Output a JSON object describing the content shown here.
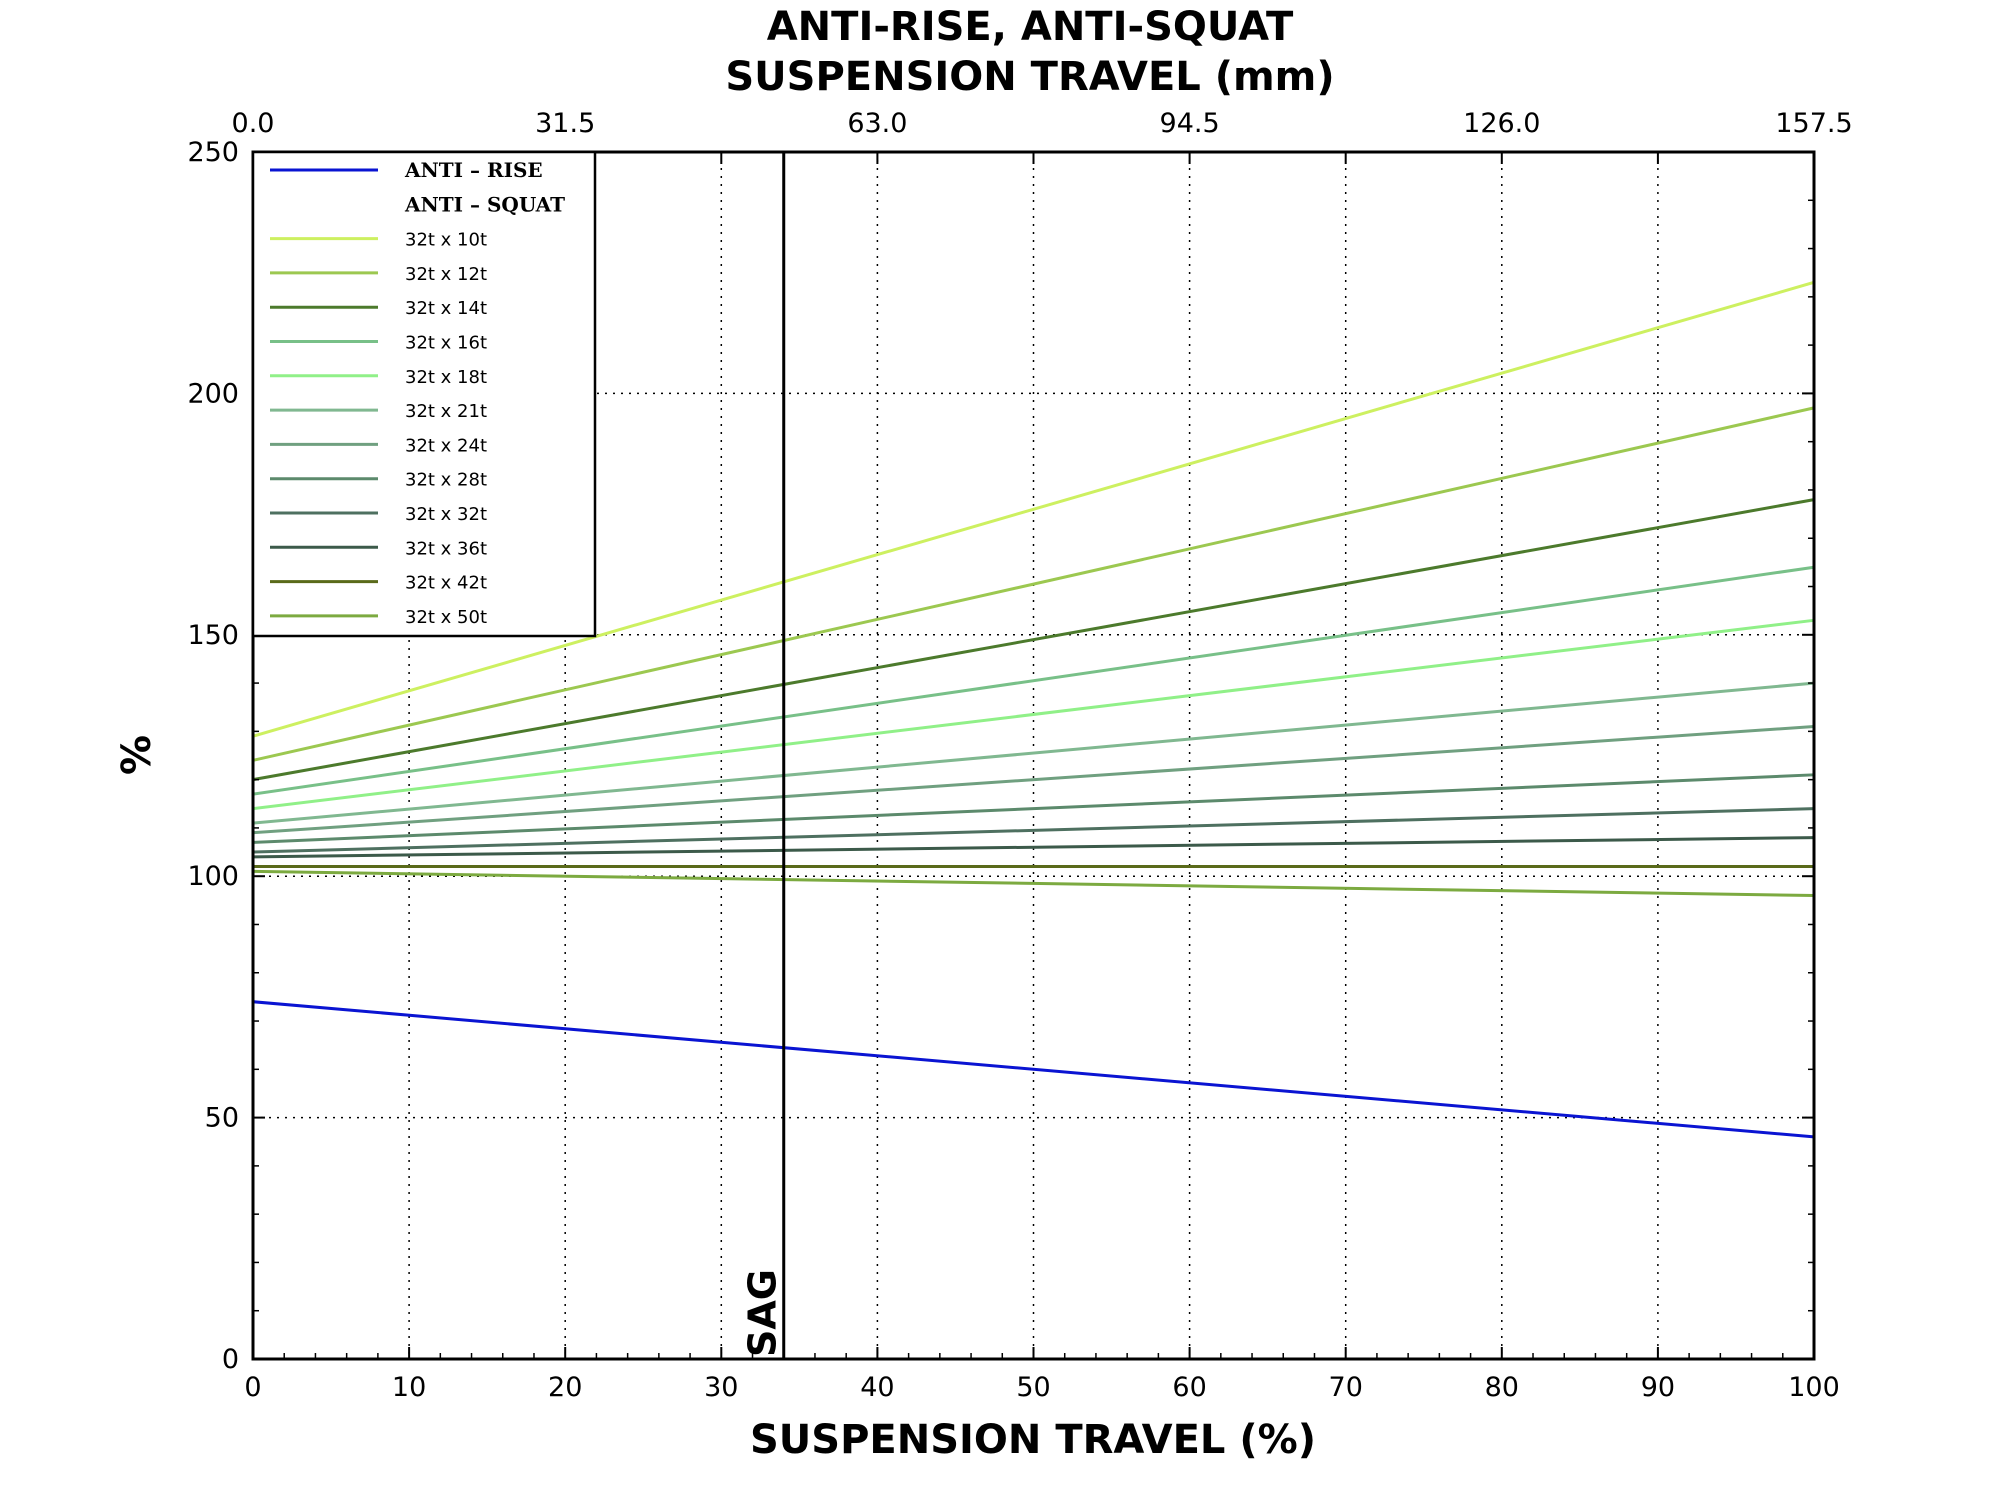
{
  "chart_data": {
    "type": "line",
    "title": [
      "ANTI-RISE, ANTI-SQUAT",
      "SUSPENSION TRAVEL (mm)"
    ],
    "xlabel": "SUSPENSION TRAVEL (%)",
    "ylabel": "%",
    "xlim": [
      0,
      100
    ],
    "ylim": [
      0,
      250
    ],
    "x_ticks": [
      0,
      10,
      20,
      30,
      40,
      50,
      60,
      70,
      80,
      90,
      100
    ],
    "y_ticks": [
      0,
      50,
      100,
      150,
      200,
      250
    ],
    "top_axis": {
      "tick_positions": [
        0,
        20,
        40,
        60,
        80,
        100
      ],
      "tick_labels": [
        "0.0",
        "31.5",
        "63.0",
        "94.5",
        "126.0",
        "157.5"
      ]
    },
    "grid": true,
    "legend_position": "top-left",
    "sag": {
      "x": 34,
      "label": "SAG"
    },
    "x": [
      0,
      100
    ],
    "series": [
      {
        "name": "ANTI – RISE",
        "values": [
          74,
          46
        ],
        "color": "#0a14d2",
        "serif": true
      },
      {
        "name": "ANTI – SQUAT",
        "values": null,
        "color": null,
        "serif": true
      },
      {
        "name": "32t x 10t",
        "values": [
          129,
          223
        ],
        "color": "#cdf060"
      },
      {
        "name": "32t x 12t",
        "values": [
          124,
          197
        ],
        "color": "#9cc850"
      },
      {
        "name": "32t x 14t",
        "values": [
          120,
          178
        ],
        "color": "#4c7a2c"
      },
      {
        "name": "32t x 16t",
        "values": [
          117,
          164
        ],
        "color": "#78c088"
      },
      {
        "name": "32t x 18t",
        "values": [
          114,
          153
        ],
        "color": "#90f088"
      },
      {
        "name": "32t x 21t",
        "values": [
          111,
          140
        ],
        "color": "#80b890"
      },
      {
        "name": "32t x 24t",
        "values": [
          109,
          131
        ],
        "color": "#70a080"
      },
      {
        "name": "32t x 28t",
        "values": [
          107,
          121
        ],
        "color": "#5c8a6c"
      },
      {
        "name": "32t x 32t",
        "values": [
          105,
          114
        ],
        "color": "#4e7060"
      },
      {
        "name": "32t x 36t",
        "values": [
          104,
          108
        ],
        "color": "#3c5a4a"
      },
      {
        "name": "32t x 42t",
        "values": [
          102,
          102
        ],
        "color": "#5a6a1a"
      },
      {
        "name": "32t x 50t",
        "values": [
          101,
          96
        ],
        "color": "#7caa40"
      }
    ]
  }
}
